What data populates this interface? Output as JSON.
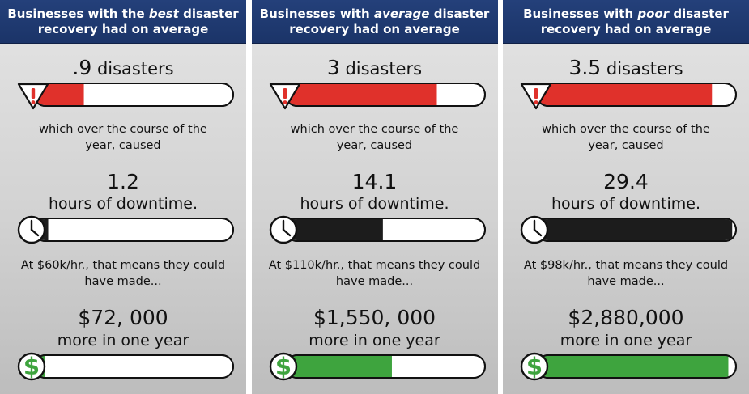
{
  "colors": {
    "header_bg": "#1f3a72",
    "disaster_fill": "#e0312b",
    "downtime_fill": "#1c1c1c",
    "money_fill": "#3ea43e",
    "bar_bg": "#ffffff",
    "outline": "#111111"
  },
  "icons": [
    "warning-triangle-icon",
    "clock-icon",
    "dollar-sign-icon"
  ],
  "panels": [
    {
      "header_pre": "Businesses with the ",
      "header_em": "best",
      "header_post": " disaster",
      "header_line2": "recovery had on average",
      "disasters_value": ".9",
      "disasters_unit": " disasters",
      "caused_line1": "which over the course of the",
      "caused_line2": "year, caused",
      "downtime_value": "1.2",
      "downtime_unit": "hours of downtime.",
      "rate_line1": "At $60k/hr., that means they could",
      "rate_line2": "have made...",
      "money_value": "$72, 000",
      "money_unit": "more in one year"
    },
    {
      "header_pre": "Businesses with ",
      "header_em": "average",
      "header_post": " disaster",
      "header_line2": "recovery had on average",
      "disasters_value": "3",
      "disasters_unit": " disasters",
      "caused_line1": "which over the course of the",
      "caused_line2": "year, caused",
      "downtime_value": "14.1",
      "downtime_unit": "hours of downtime.",
      "rate_line1": "At $110k/hr., that means they could",
      "rate_line2": "have made...",
      "money_value": "$1,550, 000",
      "money_unit": "more in one year"
    },
    {
      "header_pre": "Businesses with ",
      "header_em": "poor",
      "header_post": " disaster",
      "header_line2": "recovery had on average",
      "disasters_value": "3.5",
      "disasters_unit": " disasters",
      "caused_line1": "which over the course of the",
      "caused_line2": "year, caused",
      "downtime_value": "29.4",
      "downtime_unit": "hours of downtime.",
      "rate_line1": "At $98k/hr., that means they could",
      "rate_line2": "have made...",
      "money_value": "$2,880,000",
      "money_unit": "more in one year"
    }
  ],
  "chart_data": [
    {
      "type": "bar",
      "categories": [
        "best",
        "average",
        "poor"
      ],
      "series": [
        {
          "values": [
            0.9,
            3,
            3.5
          ]
        }
      ],
      "xlim": [
        0,
        4
      ]
    },
    {
      "type": "bar",
      "categories": [
        "best",
        "average",
        "poor"
      ],
      "series": [
        {
          "values": [
            1.2,
            14.1,
            29.4
          ]
        }
      ],
      "xlim": [
        0,
        30
      ]
    },
    {
      "type": "bar",
      "categories": [
        "best",
        "average",
        "poor"
      ],
      "series": [
        {
          "values": [
            72000,
            1550000,
            2880000
          ]
        }
      ],
      "xlim": [
        0,
        3000000
      ]
    }
  ]
}
